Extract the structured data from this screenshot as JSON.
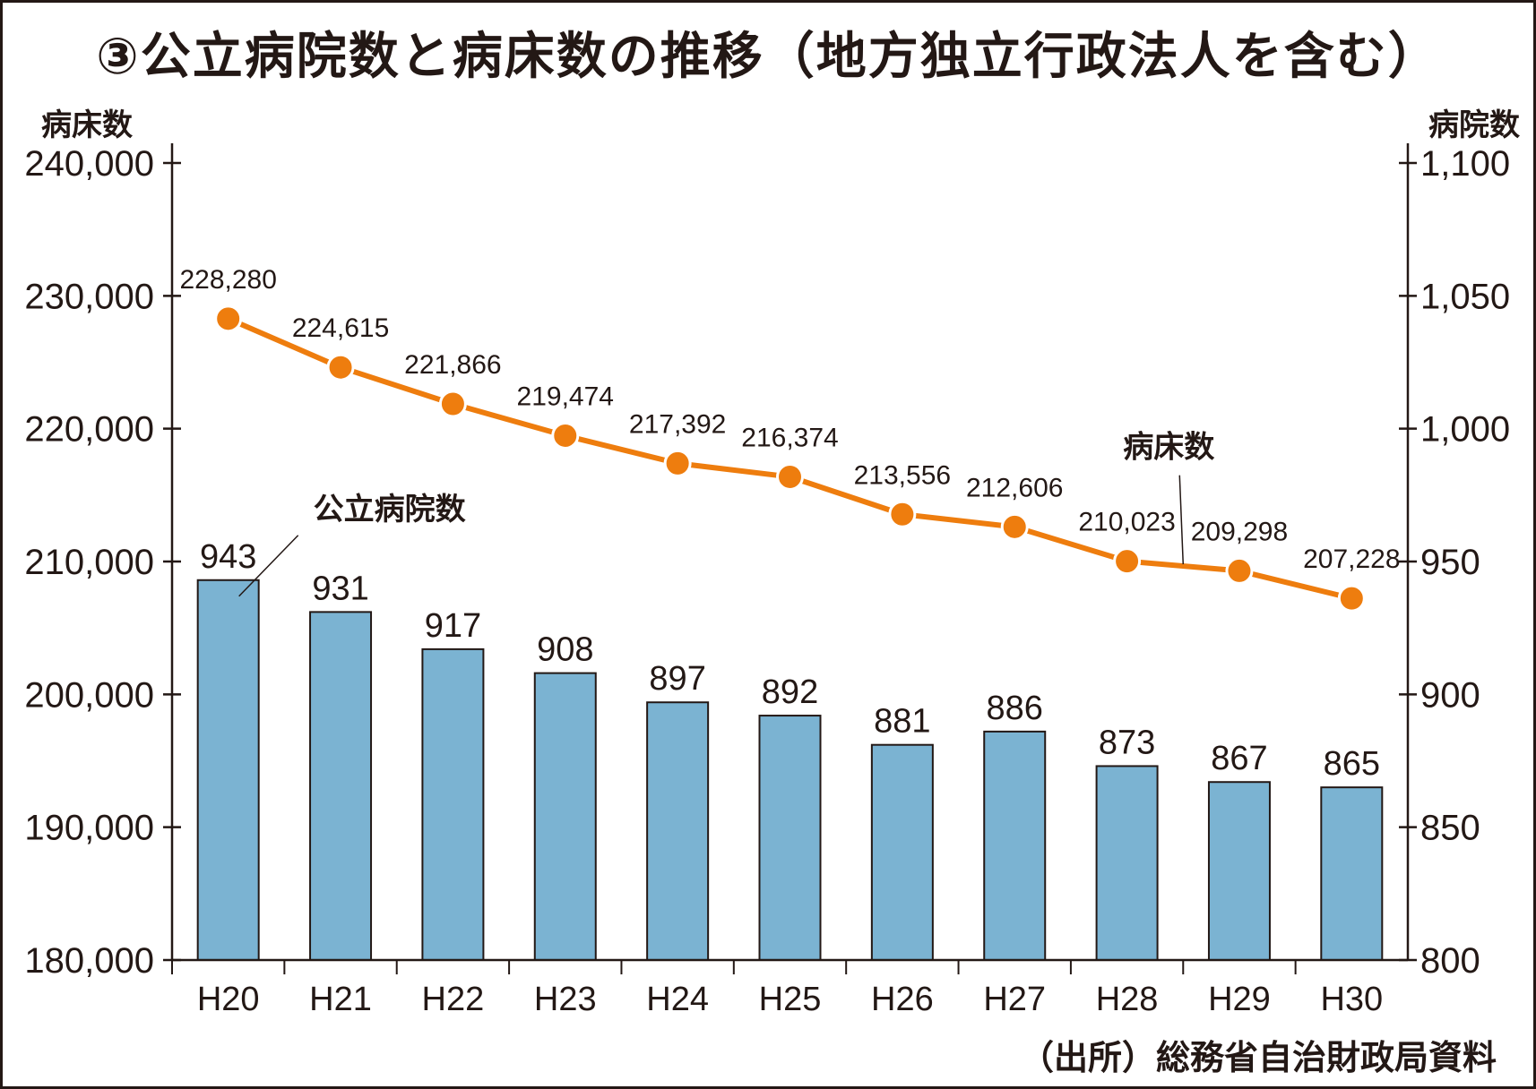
{
  "title": "③公立病院数と病床数の推移（地方独立行政法人を含む）",
  "source": "（出所）総務省自治財政局資料",
  "chart_data": {
    "type": "bar+line",
    "title": "③公立病院数と病床数の推移（地方独立行政法人を含む）",
    "categories": [
      "H20",
      "H21",
      "H22",
      "H23",
      "H24",
      "H25",
      "H26",
      "H27",
      "H28",
      "H29",
      "H30"
    ],
    "series": [
      {
        "name": "公立病院数",
        "type": "bar",
        "axis": "right",
        "color": "#7bb3d2",
        "values": [
          943,
          931,
          917,
          908,
          897,
          892,
          881,
          886,
          873,
          867,
          865
        ],
        "labels": [
          "943",
          "931",
          "917",
          "908",
          "897",
          "892",
          "881",
          "886",
          "873",
          "867",
          "865"
        ]
      },
      {
        "name": "病床数",
        "type": "line",
        "axis": "left",
        "color": "#ee7d0e",
        "values": [
          228280,
          224615,
          221866,
          219474,
          217392,
          216374,
          213556,
          212606,
          210023,
          209298,
          207228
        ],
        "labels": [
          "228,280",
          "224,615",
          "221,866",
          "219,474",
          "217,392",
          "216,374",
          "213,556",
          "212,606",
          "210,023",
          "209,298",
          "207,228"
        ]
      }
    ],
    "left_axis": {
      "label": "病床数",
      "range": [
        180000,
        240000
      ],
      "ticks": [
        240000,
        230000,
        220000,
        210000,
        200000,
        190000,
        180000
      ],
      "tick_labels": [
        "240,000",
        "230,000",
        "220,000",
        "210,000",
        "200,000",
        "190,000",
        "180,000"
      ]
    },
    "right_axis": {
      "label": "病院数",
      "range": [
        800,
        1100
      ],
      "ticks": [
        1100,
        1050,
        1000,
        950,
        900,
        850,
        800
      ],
      "tick_labels": [
        "1,100",
        "1,050",
        "1,000",
        "950",
        "900",
        "850",
        "800"
      ]
    },
    "annotations": [
      {
        "text": "公立病院数",
        "target": "公立病院数",
        "near": "H20"
      },
      {
        "text": "病床数",
        "target": "病床数",
        "near": "H28-H29"
      }
    ],
    "grid": false,
    "legend": "none"
  }
}
